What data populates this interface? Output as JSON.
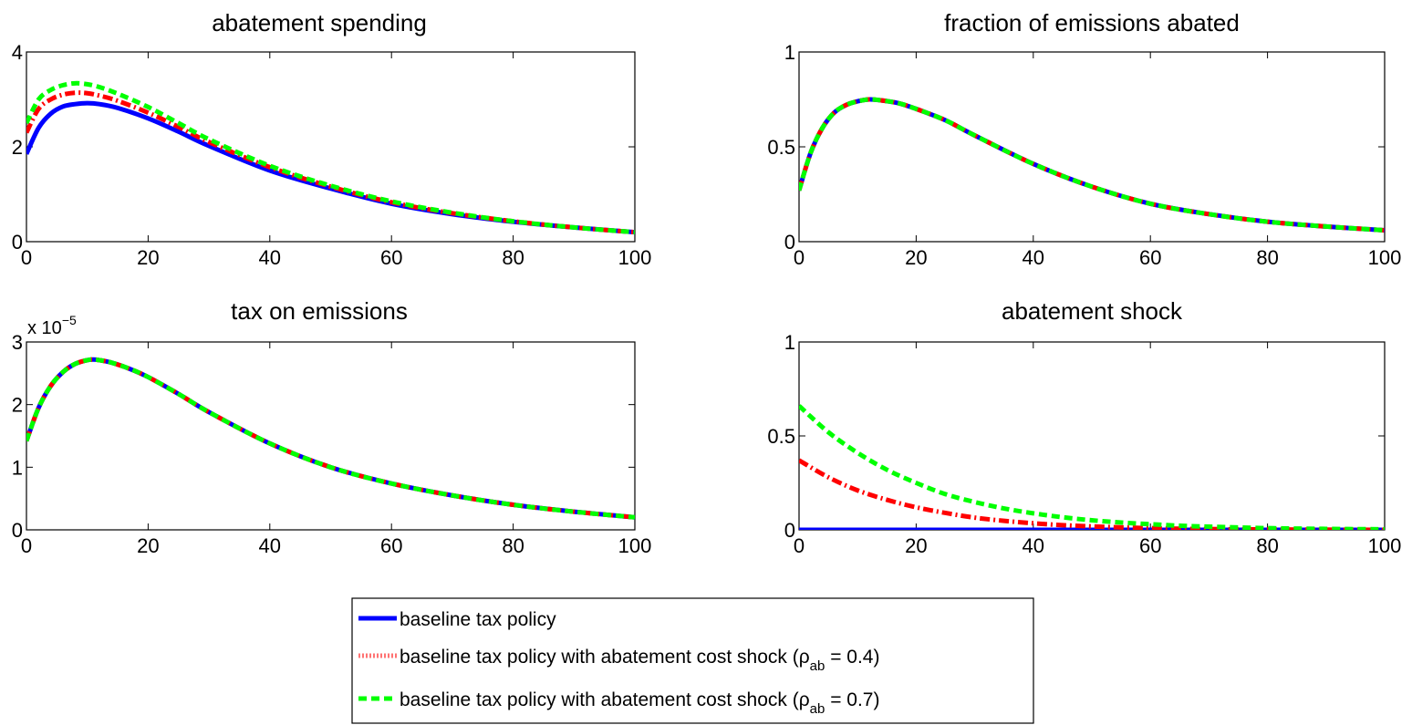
{
  "chart_data": [
    {
      "type": "line",
      "title": "abatement spending",
      "xlabel": "",
      "ylabel": "",
      "xlim": [
        0,
        100
      ],
      "ylim": [
        0,
        4
      ],
      "xticks": [
        "0",
        "20",
        "40",
        "60",
        "80",
        "100"
      ],
      "yticks": [
        "0",
        "2",
        "4"
      ],
      "exponent_label": "",
      "x": [
        0,
        2,
        4,
        6,
        8,
        10,
        12,
        15,
        20,
        25,
        30,
        40,
        50,
        60,
        70,
        80,
        90,
        100
      ],
      "series": [
        {
          "name": "baseline tax policy",
          "values": [
            1.85,
            2.4,
            2.7,
            2.85,
            2.9,
            2.92,
            2.9,
            2.82,
            2.6,
            2.32,
            2.02,
            1.5,
            1.12,
            0.8,
            0.58,
            0.42,
            0.3,
            0.2
          ]
        },
        {
          "name": "baseline tax policy with abatement cost shock (ρ_ab = 0.4)",
          "values": [
            2.3,
            2.8,
            3.0,
            3.1,
            3.14,
            3.13,
            3.08,
            2.97,
            2.72,
            2.42,
            2.1,
            1.57,
            1.16,
            0.83,
            0.6,
            0.43,
            0.3,
            0.2
          ]
        },
        {
          "name": "baseline tax policy with abatement cost shock (ρ_ab = 0.7)",
          "values": [
            2.5,
            3.0,
            3.2,
            3.3,
            3.34,
            3.32,
            3.26,
            3.12,
            2.84,
            2.5,
            2.16,
            1.6,
            1.18,
            0.85,
            0.61,
            0.43,
            0.3,
            0.2
          ]
        }
      ]
    },
    {
      "type": "line",
      "title": "fraction of emissions abated",
      "xlabel": "",
      "ylabel": "",
      "xlim": [
        0,
        100
      ],
      "ylim": [
        0,
        1
      ],
      "xticks": [
        "0",
        "20",
        "40",
        "60",
        "80",
        "100"
      ],
      "yticks": [
        "0",
        "0.5",
        "1"
      ],
      "exponent_label": "",
      "x": [
        0,
        2,
        4,
        6,
        8,
        10,
        12,
        14,
        17,
        20,
        25,
        30,
        40,
        50,
        60,
        70,
        80,
        90,
        100
      ],
      "series": [
        {
          "name": "baseline tax policy",
          "values": [
            0.27,
            0.47,
            0.6,
            0.68,
            0.72,
            0.74,
            0.75,
            0.745,
            0.73,
            0.7,
            0.64,
            0.56,
            0.41,
            0.29,
            0.2,
            0.145,
            0.105,
            0.08,
            0.06
          ]
        },
        {
          "name": "baseline tax policy with abatement cost shock (ρ_ab = 0.4)",
          "values": [
            0.27,
            0.47,
            0.6,
            0.68,
            0.72,
            0.74,
            0.75,
            0.745,
            0.73,
            0.7,
            0.64,
            0.56,
            0.41,
            0.29,
            0.2,
            0.145,
            0.105,
            0.08,
            0.06
          ]
        },
        {
          "name": "baseline tax policy with abatement cost shock (ρ_ab = 0.7)",
          "values": [
            0.27,
            0.47,
            0.6,
            0.68,
            0.72,
            0.74,
            0.75,
            0.745,
            0.73,
            0.7,
            0.64,
            0.56,
            0.41,
            0.29,
            0.2,
            0.145,
            0.105,
            0.08,
            0.06
          ]
        }
      ]
    },
    {
      "type": "line",
      "title": "tax on emissions",
      "xlabel": "",
      "ylabel": "",
      "xlim": [
        0,
        100
      ],
      "ylim": [
        0,
        3
      ],
      "xticks": [
        "0",
        "20",
        "40",
        "60",
        "80",
        "100"
      ],
      "yticks": [
        "0",
        "1",
        "2",
        "3"
      ],
      "exponent_label": "x 10",
      "exponent_power": "−5",
      "x": [
        0,
        2,
        4,
        6,
        8,
        10,
        11,
        12,
        14,
        17,
        20,
        25,
        30,
        40,
        50,
        60,
        70,
        80,
        90,
        100
      ],
      "series": [
        {
          "name": "baseline tax policy",
          "values": [
            1.42,
            1.95,
            2.3,
            2.52,
            2.65,
            2.71,
            2.72,
            2.71,
            2.67,
            2.57,
            2.44,
            2.17,
            1.88,
            1.38,
            1.0,
            0.74,
            0.55,
            0.4,
            0.29,
            0.2
          ]
        },
        {
          "name": "baseline tax policy with abatement cost shock (ρ_ab = 0.4)",
          "values": [
            1.42,
            1.95,
            2.3,
            2.52,
            2.65,
            2.71,
            2.72,
            2.71,
            2.67,
            2.57,
            2.44,
            2.17,
            1.88,
            1.38,
            1.0,
            0.74,
            0.55,
            0.4,
            0.29,
            0.2
          ]
        },
        {
          "name": "baseline tax policy with abatement cost shock (ρ_ab = 0.7)",
          "values": [
            1.42,
            1.95,
            2.3,
            2.52,
            2.65,
            2.71,
            2.72,
            2.71,
            2.67,
            2.57,
            2.44,
            2.17,
            1.88,
            1.38,
            1.0,
            0.74,
            0.55,
            0.4,
            0.29,
            0.2
          ]
        }
      ]
    },
    {
      "type": "line",
      "title": "abatement shock",
      "xlabel": "",
      "ylabel": "",
      "xlim": [
        0,
        100
      ],
      "ylim": [
        0,
        1
      ],
      "xticks": [
        "0",
        "20",
        "40",
        "60",
        "80",
        "100"
      ],
      "yticks": [
        "0",
        "0.5",
        "1"
      ],
      "exponent_label": "",
      "x": [
        0,
        5,
        10,
        15,
        20,
        25,
        30,
        35,
        40,
        45,
        50,
        55,
        60,
        65,
        70,
        80,
        90,
        100
      ],
      "series": [
        {
          "name": "baseline tax policy",
          "values": [
            0,
            0,
            0,
            0,
            0,
            0,
            0,
            0,
            0,
            0,
            0,
            0,
            0,
            0,
            0,
            0,
            0,
            0
          ]
        },
        {
          "name": "baseline tax policy with abatement cost shock (ρ_ab = 0.4)",
          "values": [
            0.37,
            0.28,
            0.21,
            0.16,
            0.12,
            0.09,
            0.065,
            0.048,
            0.035,
            0.025,
            0.018,
            0.013,
            0.009,
            0.006,
            0.004,
            0.002,
            0.001,
            0.0
          ]
        },
        {
          "name": "baseline tax policy with abatement cost shock (ρ_ab = 0.7)",
          "values": [
            0.66,
            0.52,
            0.41,
            0.32,
            0.25,
            0.19,
            0.148,
            0.114,
            0.088,
            0.067,
            0.051,
            0.039,
            0.03,
            0.022,
            0.017,
            0.009,
            0.005,
            0.003
          ]
        }
      ]
    }
  ],
  "legend": {
    "placement": "bottom-center",
    "entries": [
      {
        "label": "baseline tax policy"
      },
      {
        "label": "baseline tax policy with abatement cost shock (ρ",
        "sub": "ab",
        "tail": " = 0.4)"
      },
      {
        "label": "baseline tax policy with abatement cost shock (ρ",
        "sub": "ab",
        "tail": " = 0.7)"
      }
    ]
  },
  "colors": {
    "baseline": "#0000ff",
    "shock_04": "#ff0000",
    "shock_07": "#00ff00",
    "axes": "#000000"
  }
}
